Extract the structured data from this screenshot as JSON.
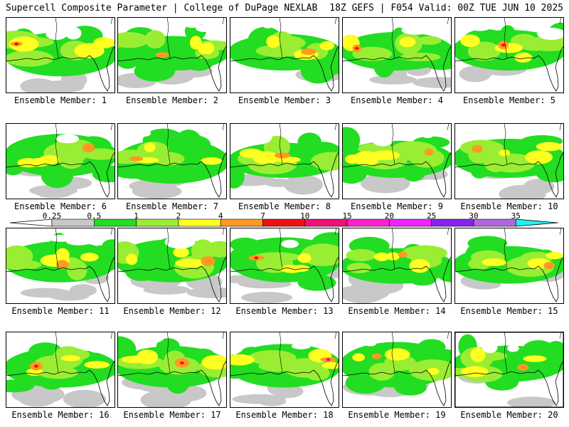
{
  "header": {
    "left": "Supercell Composite Parameter | College of DuPage NEXLAB",
    "right": "18Z GEFS | F054 Valid: 00Z TUE JUN 10 2025"
  },
  "members": [
    {
      "label": "Ensemble Member: 1"
    },
    {
      "label": "Ensemble Member: 2"
    },
    {
      "label": "Ensemble Member: 3"
    },
    {
      "label": "Ensemble Member: 4"
    },
    {
      "label": "Ensemble Member: 5"
    },
    {
      "label": "Ensemble Member: 6"
    },
    {
      "label": "Ensemble Member: 7"
    },
    {
      "label": "Ensemble Member: 8"
    },
    {
      "label": "Ensemble Member: 9"
    },
    {
      "label": "Ensemble Member: 10"
    },
    {
      "label": "Ensemble Member: 11"
    },
    {
      "label": "Ensemble Member: 12"
    },
    {
      "label": "Ensemble Member: 13"
    },
    {
      "label": "Ensemble Member: 14"
    },
    {
      "label": "Ensemble Member: 15"
    },
    {
      "label": "Ensemble Member: 16"
    },
    {
      "label": "Ensemble Member: 17"
    },
    {
      "label": "Ensemble Member: 18"
    },
    {
      "label": "Ensemble Member: 19"
    },
    {
      "label": "Ensemble Member: 20"
    }
  ],
  "colorbar": {
    "ticks": [
      "0.25",
      "0.5",
      "1",
      "2",
      "4",
      "7",
      "10",
      "15",
      "20",
      "25",
      "30",
      "35"
    ],
    "colors": [
      "#c8c8c8",
      "#22dd22",
      "#99ee33",
      "#ffff22",
      "#ff9922",
      "#ee1111",
      "#ee1177",
      "#ff22cc",
      "#ee22ff",
      "#8822ee",
      "#b066dd",
      "#22eeee"
    ]
  }
}
